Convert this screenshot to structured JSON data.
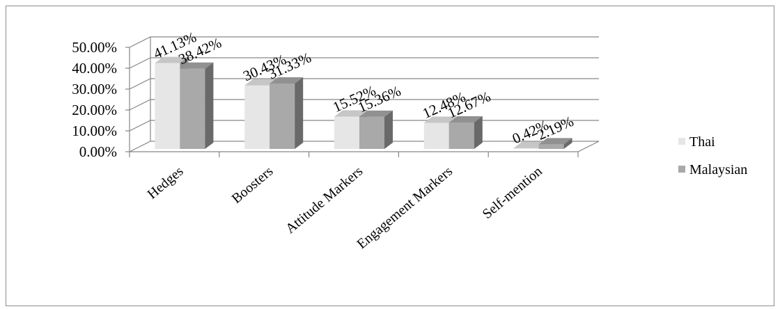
{
  "chart_data": {
    "type": "bar",
    "title": "",
    "xlabel": "",
    "ylabel": "",
    "ylim": [
      0,
      50
    ],
    "y_ticks": [
      "0.00%",
      "10.00%",
      "20.00%",
      "30.00%",
      "40.00%",
      "50.00%"
    ],
    "categories": [
      "Hedges",
      "Boosters",
      "Attitude Markers",
      "Engagement Markers",
      "Self-mention"
    ],
    "series": [
      {
        "name": "Thai",
        "color": "#e6e6e6",
        "values": [
          41.13,
          30.43,
          15.52,
          12.48,
          0.42
        ],
        "labels": [
          "41.13%",
          "30.43%",
          "15.52%",
          "12.48%",
          "0.42%"
        ]
      },
      {
        "name": "Malaysian",
        "color": "#a9a9a9",
        "values": [
          38.42,
          31.33,
          15.36,
          12.67,
          2.19
        ],
        "labels": [
          "38.42%",
          "31.33%",
          "15.36%",
          "12.67%",
          "2.19%"
        ]
      }
    ],
    "grid": true,
    "style": "3d-clustered-column",
    "legend_position": "right"
  }
}
